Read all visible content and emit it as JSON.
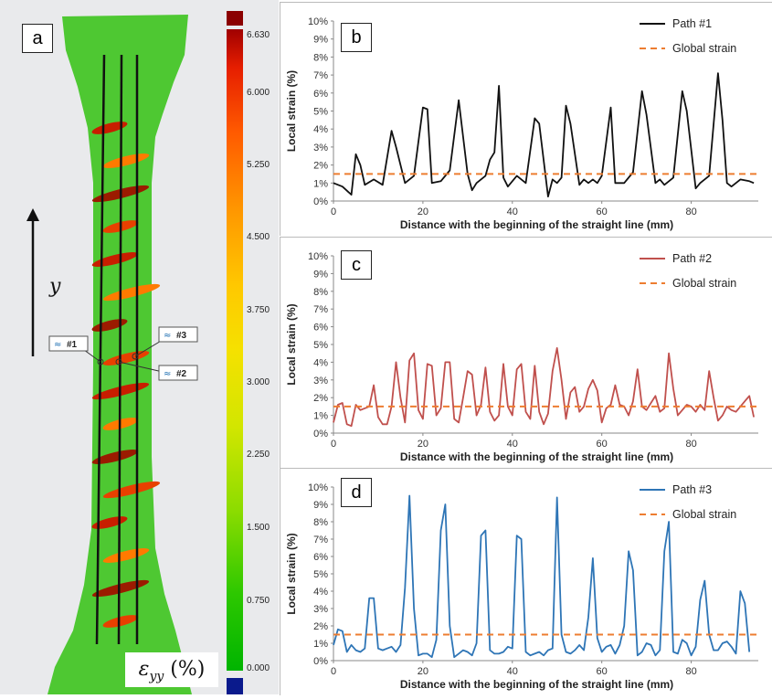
{
  "specimen": {
    "panel_label": "a",
    "axis_symbol": "y",
    "path_tags": [
      "#1",
      "#2",
      "#3"
    ],
    "strain_label": "ε",
    "strain_sub": "yy",
    "strain_unit": " (%)"
  },
  "colorbar": {
    "labels": [
      "6.630",
      "6.000",
      "5.250",
      "4.500",
      "3.750",
      "3.000",
      "2.250",
      "1.500",
      "0.750",
      "0.000"
    ],
    "colors": [
      "#00b400",
      "#2dc800",
      "#8cdc00",
      "#d2e600",
      "#f5e100",
      "#ffc800",
      "#ff9600",
      "#ff5a00",
      "#e61e00",
      "#a00000"
    ]
  },
  "colors": {
    "path1": "#111111",
    "path2": "#c0504d",
    "path3": "#2e75b6",
    "global": "#ed7d31"
  },
  "chart_data": [
    {
      "type": "line",
      "panel_label": "b",
      "title": "",
      "xlabel": "Distance with the beginning of the straight line (mm)",
      "ylabel": "Local strain (%)",
      "xlim": [
        0,
        95
      ],
      "ylim": [
        0,
        10
      ],
      "xticks": [
        "0",
        "20",
        "40",
        "60",
        "80"
      ],
      "yticks": [
        "0%",
        "1%",
        "2%",
        "3%",
        "4%",
        "5%",
        "6%",
        "7%",
        "8%",
        "9%",
        "10%"
      ],
      "grid": false,
      "legend_position": "top-right",
      "series": [
        {
          "name": "Path #1",
          "x": [
            0,
            2,
            4,
            5,
            6,
            7,
            9,
            11,
            13,
            14,
            16,
            18,
            20,
            21,
            22,
            24,
            26,
            28,
            30,
            31,
            32,
            34,
            35,
            36,
            37,
            38,
            39,
            41,
            43,
            45,
            46,
            48,
            49,
            50,
            51,
            52,
            53,
            55,
            56,
            57,
            58,
            59,
            60,
            62,
            63,
            65,
            67,
            69,
            70,
            72,
            73,
            74,
            76,
            78,
            79,
            81,
            82,
            84,
            86,
            87,
            88,
            89,
            91,
            93,
            94
          ],
          "y": [
            1.0,
            0.8,
            0.35,
            2.6,
            2.0,
            0.9,
            1.2,
            0.9,
            3.9,
            3.0,
            1.0,
            1.4,
            5.2,
            5.1,
            1.0,
            1.1,
            1.7,
            5.6,
            1.5,
            0.6,
            1.0,
            1.4,
            2.3,
            2.7,
            6.4,
            1.3,
            0.8,
            1.4,
            1.0,
            4.6,
            4.3,
            0.25,
            1.2,
            1.0,
            1.3,
            5.3,
            4.3,
            0.9,
            1.2,
            1.0,
            1.2,
            1.0,
            1.4,
            5.2,
            1.0,
            1.0,
            1.6,
            6.1,
            4.8,
            1.0,
            1.2,
            0.9,
            1.3,
            6.1,
            5.0,
            0.7,
            1.0,
            1.4,
            7.1,
            4.5,
            1.0,
            0.8,
            1.2,
            1.1,
            1.0
          ]
        },
        {
          "name": "Global strain",
          "x": [
            0,
            95
          ],
          "y": [
            1.5,
            1.5
          ]
        }
      ]
    },
    {
      "type": "line",
      "panel_label": "c",
      "title": "",
      "xlabel": "Distance with the beginning of the straight line (mm)",
      "ylabel": "Local strain (%)",
      "xlim": [
        0,
        95
      ],
      "ylim": [
        0,
        10
      ],
      "xticks": [
        "0",
        "20",
        "40",
        "60",
        "80"
      ],
      "yticks": [
        "0%",
        "1%",
        "2%",
        "3%",
        "4%",
        "5%",
        "6%",
        "7%",
        "8%",
        "9%",
        "10%"
      ],
      "grid": false,
      "legend_position": "top-right",
      "series": [
        {
          "name": "Path #2",
          "x": [
            0,
            1,
            2,
            3,
            4,
            5,
            6,
            8,
            9,
            10,
            11,
            12,
            13,
            14,
            15,
            16,
            17,
            18,
            19,
            20,
            21,
            22,
            23,
            24,
            25,
            26,
            27,
            28,
            29,
            30,
            31,
            32,
            33,
            34,
            35,
            36,
            37,
            38,
            39,
            40,
            41,
            42,
            43,
            44,
            45,
            46,
            47,
            48,
            49,
            50,
            51,
            52,
            53,
            54,
            55,
            56,
            57,
            58,
            59,
            60,
            61,
            62,
            63,
            64,
            65,
            66,
            67,
            68,
            69,
            70,
            71,
            72,
            73,
            74,
            75,
            76,
            77,
            78,
            79,
            80,
            81,
            82,
            83,
            84,
            85,
            86,
            87,
            88,
            89,
            90,
            91,
            92,
            93,
            94
          ],
          "y": [
            0.6,
            1.6,
            1.7,
            0.5,
            0.4,
            1.6,
            1.3,
            1.5,
            2.7,
            0.9,
            0.5,
            0.5,
            1.5,
            4.0,
            2.0,
            0.6,
            4.1,
            4.5,
            1.3,
            0.8,
            3.9,
            3.8,
            1.0,
            1.4,
            4.0,
            4.0,
            0.8,
            0.6,
            2.0,
            3.5,
            3.3,
            1.0,
            1.6,
            3.7,
            1.2,
            0.7,
            1.0,
            3.9,
            1.5,
            1.0,
            3.6,
            3.9,
            1.2,
            0.8,
            3.8,
            1.2,
            0.5,
            1.1,
            3.5,
            4.8,
            3.0,
            0.8,
            2.3,
            2.6,
            1.2,
            1.5,
            2.5,
            3.0,
            2.4,
            0.6,
            1.4,
            1.6,
            2.7,
            1.6,
            1.5,
            1.0,
            1.8,
            3.6,
            1.5,
            1.3,
            1.7,
            2.1,
            1.2,
            1.4,
            4.5,
            2.5,
            1.0,
            1.3,
            1.6,
            1.5,
            1.2,
            1.6,
            1.3,
            3.5,
            2.0,
            0.7,
            1.0,
            1.5,
            1.3,
            1.2,
            1.5,
            1.8,
            2.1,
            0.9
          ]
        },
        {
          "name": "Global strain",
          "x": [
            0,
            95
          ],
          "y": [
            1.5,
            1.5
          ]
        }
      ]
    },
    {
      "type": "line",
      "panel_label": "d",
      "title": "",
      "xlabel": "Distance with the beginning of the straight line (mm)",
      "ylabel": "Local strain (%)",
      "xlim": [
        0,
        95
      ],
      "ylim": [
        0,
        10
      ],
      "xticks": [
        "0",
        "20",
        "40",
        "60",
        "80"
      ],
      "yticks": [
        "0%",
        "1%",
        "2%",
        "3%",
        "4%",
        "5%",
        "6%",
        "7%",
        "8%",
        "9%",
        "10%"
      ],
      "grid": false,
      "legend_position": "top-right",
      "series": [
        {
          "name": "Path #3",
          "x": [
            0,
            1,
            2,
            3,
            4,
            5,
            6,
            7,
            8,
            9,
            10,
            11,
            12,
            13,
            14,
            15,
            16,
            17,
            18,
            19,
            20,
            21,
            22,
            23,
            24,
            25,
            26,
            27,
            28,
            29,
            30,
            31,
            32,
            33,
            34,
            35,
            36,
            37,
            38,
            39,
            40,
            41,
            42,
            43,
            44,
            45,
            46,
            47,
            48,
            49,
            50,
            51,
            52,
            53,
            54,
            55,
            56,
            57,
            58,
            59,
            60,
            61,
            62,
            63,
            64,
            65,
            66,
            67,
            68,
            69,
            70,
            71,
            72,
            73,
            74,
            75,
            76,
            77,
            78,
            79,
            80,
            81,
            82,
            83,
            84,
            85,
            86,
            87,
            88,
            89,
            90,
            91,
            92,
            93
          ],
          "y": [
            0.9,
            1.8,
            1.7,
            0.5,
            0.9,
            0.6,
            0.5,
            0.7,
            3.6,
            3.6,
            0.7,
            0.6,
            0.7,
            0.8,
            0.5,
            0.9,
            4.2,
            9.5,
            3.0,
            0.3,
            0.4,
            0.4,
            0.2,
            1.2,
            7.5,
            9.0,
            2.0,
            0.2,
            0.4,
            0.6,
            0.5,
            0.3,
            1.0,
            7.2,
            7.5,
            0.6,
            0.4,
            0.4,
            0.5,
            0.8,
            0.7,
            7.2,
            7.0,
            0.5,
            0.3,
            0.4,
            0.5,
            0.3,
            0.6,
            0.7,
            9.4,
            1.5,
            0.5,
            0.4,
            0.6,
            0.9,
            0.6,
            2.5,
            5.9,
            1.3,
            0.5,
            0.8,
            0.9,
            0.4,
            0.9,
            2.0,
            6.3,
            5.2,
            0.3,
            0.5,
            1.0,
            0.9,
            0.3,
            0.6,
            6.3,
            8.0,
            0.5,
            0.4,
            1.2,
            1.0,
            0.3,
            0.8,
            3.5,
            4.6,
            1.5,
            0.6,
            0.6,
            1.0,
            1.1,
            0.8,
            0.4,
            4.0,
            3.3,
            0.5
          ]
        },
        {
          "name": "Global strain",
          "x": [
            0,
            95
          ],
          "y": [
            1.5,
            1.5
          ]
        }
      ]
    }
  ]
}
